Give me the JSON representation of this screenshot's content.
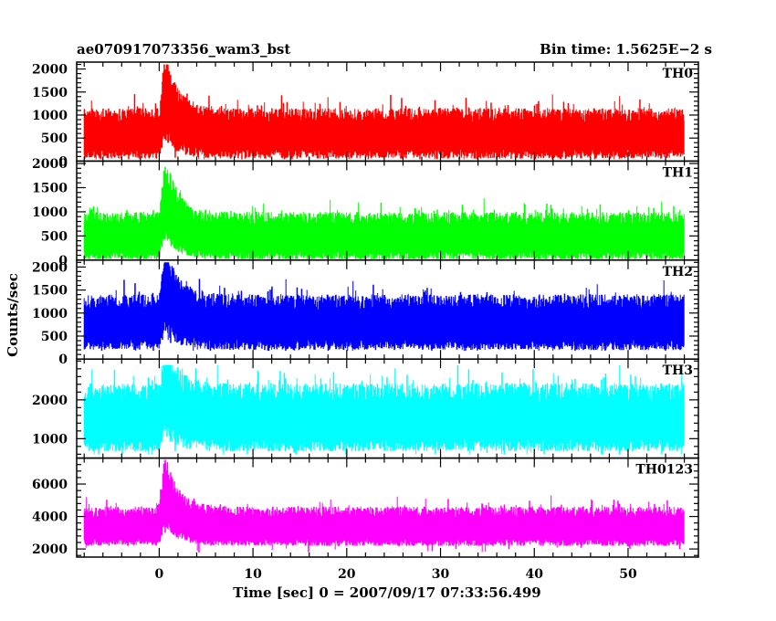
{
  "header": {
    "title": "ae070917073356_wam3_bst",
    "bin_time": "Bin time: 1.5625E−2 s"
  },
  "axes": {
    "xlabel": "Time [sec] 0 = 2007/09/17 07:33:56.499",
    "ylabel": "Counts/sec"
  },
  "chart_data": {
    "type": "line",
    "title": "ae070917073356_wam3_bst",
    "bin_time_s": 0.015625,
    "xlabel": "Time [sec] 0 = 2007/09/17 07:33:56.499",
    "ylabel": "Counts/sec",
    "xlim": [
      -8.8,
      57.5
    ],
    "x_ticks": [
      0,
      10,
      20,
      30,
      40,
      50
    ],
    "x_data_range": [
      -8.0,
      56.0
    ],
    "burst_peak_time": 0.6,
    "panels": [
      {
        "name": "TH0",
        "color": "#ff0000",
        "ylim": [
          0,
          2150
        ],
        "y_ticks": [
          0,
          500,
          1000,
          1500,
          2000
        ],
        "background_mean": 600,
        "background_spread": 1000,
        "peak": 2100,
        "min_floor": 40
      },
      {
        "name": "TH1",
        "color": "#00ff00",
        "ylim": [
          0,
          2050
        ],
        "y_ticks": [
          0,
          500,
          1000,
          1500,
          2000
        ],
        "background_mean": 500,
        "background_spread": 900,
        "peak": 2000,
        "min_floor": 20
      },
      {
        "name": "TH2",
        "color": "#0000ff",
        "ylim": [
          0,
          2150
        ],
        "y_ticks": [
          0,
          500,
          1000,
          1500,
          2000
        ],
        "background_mean": 800,
        "background_spread": 1100,
        "peak": 2100,
        "min_floor": 180
      },
      {
        "name": "TH3",
        "color": "#00ffff",
        "ylim": [
          500,
          3050
        ],
        "y_ticks": [
          1000,
          2000
        ],
        "background_mean": 1550,
        "background_spread": 1600,
        "peak": 2900,
        "min_floor": 600
      },
      {
        "name": "TH0123",
        "color": "#ff00ff",
        "ylim": [
          1500,
          7600
        ],
        "y_ticks": [
          2000,
          4000,
          6000
        ],
        "background_mean": 3400,
        "background_spread": 2200,
        "peak": 7500,
        "min_floor": 1700
      }
    ]
  }
}
